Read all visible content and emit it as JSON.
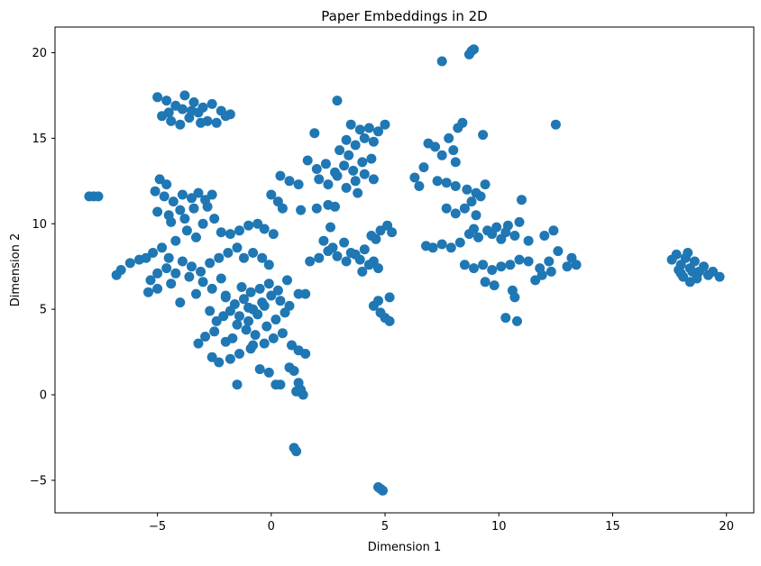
{
  "chart_data": {
    "type": "scatter",
    "title": "Paper Embeddings in 2D",
    "xlabel": "Dimension 1",
    "ylabel": "Dimension 2",
    "xlim": [
      -9.5,
      21.2
    ],
    "ylim": [
      -6.9,
      21.5
    ],
    "xticks": [
      -5,
      0,
      5,
      10,
      15,
      20
    ],
    "yticks": [
      -5,
      0,
      5,
      10,
      15,
      20
    ],
    "xtick_labels": [
      "−5",
      "0",
      "5",
      "10",
      "15",
      "20"
    ],
    "ytick_labels": [
      "−5",
      "0",
      "5",
      "10",
      "15",
      "20"
    ],
    "grid": false,
    "legend": "none",
    "marker_color": "#1f77b4",
    "points": [
      [
        8.9,
        20.2
      ],
      [
        8.7,
        19.9
      ],
      [
        8.8,
        20.1
      ],
      [
        7.5,
        19.5
      ],
      [
        -5.0,
        17.4
      ],
      [
        -4.6,
        17.2
      ],
      [
        -4.2,
        16.9
      ],
      [
        -3.8,
        17.5
      ],
      [
        -3.4,
        17.1
      ],
      [
        -3.0,
        16.8
      ],
      [
        -2.6,
        17.0
      ],
      [
        -2.2,
        16.6
      ],
      [
        -1.8,
        16.4
      ],
      [
        -4.8,
        16.3
      ],
      [
        -4.4,
        16.0
      ],
      [
        -4.0,
        15.8
      ],
      [
        -3.6,
        16.2
      ],
      [
        -3.2,
        16.5
      ],
      [
        -2.8,
        16.0
      ],
      [
        -2.4,
        15.9
      ],
      [
        -3.9,
        16.7
      ],
      [
        -3.5,
        16.6
      ],
      [
        -4.5,
        16.5
      ],
      [
        -2.0,
        16.3
      ],
      [
        -3.1,
        15.9
      ],
      [
        -8.0,
        11.6
      ],
      [
        -7.8,
        11.6
      ],
      [
        -7.6,
        11.6
      ],
      [
        2.9,
        17.2
      ],
      [
        1.9,
        15.3
      ],
      [
        12.5,
        15.8
      ],
      [
        9.3,
        15.2
      ],
      [
        3.5,
        15.8
      ],
      [
        3.9,
        15.5
      ],
      [
        4.3,
        15.6
      ],
      [
        4.7,
        15.4
      ],
      [
        5.0,
        15.8
      ],
      [
        3.3,
        14.9
      ],
      [
        3.7,
        14.6
      ],
      [
        4.1,
        15.0
      ],
      [
        4.5,
        14.8
      ],
      [
        3.0,
        14.3
      ],
      [
        3.4,
        14.0
      ],
      [
        1.6,
        13.7
      ],
      [
        2.0,
        13.2
      ],
      [
        2.4,
        13.5
      ],
      [
        2.8,
        13.0
      ],
      [
        3.2,
        13.4
      ],
      [
        3.6,
        13.1
      ],
      [
        4.0,
        13.6
      ],
      [
        4.4,
        13.8
      ],
      [
        2.1,
        12.6
      ],
      [
        2.5,
        12.3
      ],
      [
        2.9,
        12.8
      ],
      [
        3.3,
        12.1
      ],
      [
        3.7,
        12.5
      ],
      [
        4.1,
        12.9
      ],
      [
        4.5,
        12.6
      ],
      [
        3.8,
        11.8
      ],
      [
        0.4,
        12.8
      ],
      [
        0.8,
        12.5
      ],
      [
        1.2,
        12.3
      ],
      [
        0.0,
        11.7
      ],
      [
        0.3,
        11.3
      ],
      [
        0.5,
        10.9
      ],
      [
        1.3,
        10.8
      ],
      [
        2.0,
        10.9
      ],
      [
        2.5,
        11.1
      ],
      [
        2.8,
        11.0
      ],
      [
        6.3,
        12.7
      ],
      [
        6.5,
        12.2
      ],
      [
        6.7,
        13.3
      ],
      [
        6.9,
        14.7
      ],
      [
        7.2,
        14.5
      ],
      [
        7.5,
        14.0
      ],
      [
        8.0,
        14.3
      ],
      [
        8.4,
        15.9
      ],
      [
        8.2,
        15.6
      ],
      [
        7.8,
        15.0
      ],
      [
        8.1,
        13.6
      ],
      [
        7.3,
        12.5
      ],
      [
        7.7,
        12.4
      ],
      [
        8.1,
        12.2
      ],
      [
        8.6,
        12.0
      ],
      [
        9.0,
        11.8
      ],
      [
        9.4,
        12.3
      ],
      [
        9.2,
        11.6
      ],
      [
        8.8,
        11.3
      ],
      [
        8.5,
        10.9
      ],
      [
        8.1,
        10.6
      ],
      [
        7.7,
        10.9
      ],
      [
        9.0,
        10.5
      ],
      [
        7.5,
        8.8
      ],
      [
        7.9,
        8.6
      ],
      [
        8.3,
        8.9
      ],
      [
        8.7,
        9.4
      ],
      [
        9.1,
        9.2
      ],
      [
        9.5,
        9.6
      ],
      [
        9.9,
        9.8
      ],
      [
        10.3,
        9.5
      ],
      [
        10.7,
        9.3
      ],
      [
        10.4,
        9.9
      ],
      [
        10.9,
        10.1
      ],
      [
        11.3,
        9.0
      ],
      [
        10.1,
        9.1
      ],
      [
        9.7,
        9.4
      ],
      [
        8.9,
        9.7
      ],
      [
        6.8,
        8.7
      ],
      [
        7.1,
        8.6
      ],
      [
        12.0,
        9.3
      ],
      [
        12.4,
        9.6
      ],
      [
        12.6,
        8.4
      ],
      [
        13.2,
        8.0
      ],
      [
        13.4,
        7.6
      ],
      [
        13.0,
        7.5
      ],
      [
        12.3,
        7.2
      ],
      [
        11.9,
        7.0
      ],
      [
        11.6,
        6.7
      ],
      [
        11.3,
        7.8
      ],
      [
        10.9,
        7.9
      ],
      [
        10.5,
        7.6
      ],
      [
        10.1,
        7.5
      ],
      [
        9.7,
        7.3
      ],
      [
        9.3,
        7.6
      ],
      [
        8.9,
        7.4
      ],
      [
        8.5,
        7.6
      ],
      [
        9.4,
        6.6
      ],
      [
        9.8,
        6.4
      ],
      [
        10.6,
        6.1
      ],
      [
        10.7,
        5.7
      ],
      [
        10.3,
        4.5
      ],
      [
        10.8,
        4.3
      ],
      [
        11.0,
        11.4
      ],
      [
        11.8,
        7.4
      ],
      [
        12.2,
        7.8
      ],
      [
        17.6,
        7.9
      ],
      [
        17.8,
        8.2
      ],
      [
        18.0,
        7.6
      ],
      [
        18.2,
        8.0
      ],
      [
        18.4,
        7.4
      ],
      [
        18.6,
        7.8
      ],
      [
        18.8,
        7.2
      ],
      [
        18.1,
        6.9
      ],
      [
        18.4,
        6.6
      ],
      [
        18.7,
        6.8
      ],
      [
        17.9,
        7.3
      ],
      [
        18.3,
        8.3
      ],
      [
        19.0,
        7.5
      ],
      [
        19.4,
        7.2
      ],
      [
        19.7,
        6.9
      ],
      [
        19.2,
        7.0
      ],
      [
        18.0,
        7.1
      ],
      [
        18.5,
        7.2
      ],
      [
        1.7,
        7.8
      ],
      [
        2.1,
        8.0
      ],
      [
        2.5,
        8.4
      ],
      [
        2.9,
        8.1
      ],
      [
        3.3,
        7.8
      ],
      [
        3.7,
        8.2
      ],
      [
        4.1,
        8.5
      ],
      [
        4.5,
        7.8
      ],
      [
        4.7,
        7.4
      ],
      [
        4.3,
        7.6
      ],
      [
        3.9,
        7.9
      ],
      [
        2.3,
        9.0
      ],
      [
        2.7,
        8.6
      ],
      [
        2.6,
        9.8
      ],
      [
        3.2,
        8.9
      ],
      [
        3.5,
        8.3
      ],
      [
        4.0,
        7.2
      ],
      [
        4.4,
        9.3
      ],
      [
        4.8,
        9.6
      ],
      [
        5.1,
        9.9
      ],
      [
        5.3,
        9.5
      ],
      [
        4.6,
        9.1
      ],
      [
        4.5,
        5.2
      ],
      [
        4.8,
        4.8
      ],
      [
        5.0,
        4.5
      ],
      [
        5.2,
        4.3
      ],
      [
        4.7,
        5.5
      ],
      [
        5.2,
        5.7
      ],
      [
        -4.9,
        12.6
      ],
      [
        -4.6,
        12.3
      ],
      [
        -5.1,
        11.9
      ],
      [
        -4.7,
        11.6
      ],
      [
        -4.3,
        11.3
      ],
      [
        -3.9,
        11.7
      ],
      [
        -3.5,
        11.5
      ],
      [
        -3.2,
        11.8
      ],
      [
        -2.9,
        11.4
      ],
      [
        -2.6,
        11.7
      ],
      [
        -2.8,
        11.0
      ],
      [
        -3.4,
        10.9
      ],
      [
        -4.0,
        10.8
      ],
      [
        -4.5,
        10.5
      ],
      [
        -5.0,
        10.7
      ],
      [
        -4.4,
        10.1
      ],
      [
        -3.8,
        10.3
      ],
      [
        -3.0,
        10.0
      ],
      [
        -2.5,
        10.3
      ],
      [
        -2.2,
        9.5
      ],
      [
        -1.8,
        9.4
      ],
      [
        -1.4,
        9.6
      ],
      [
        -1.0,
        9.9
      ],
      [
        -0.6,
        10.0
      ],
      [
        -0.3,
        9.7
      ],
      [
        0.1,
        9.4
      ],
      [
        -3.7,
        9.6
      ],
      [
        -3.3,
        9.2
      ],
      [
        -4.2,
        9.0
      ],
      [
        -4.8,
        8.6
      ],
      [
        -5.2,
        8.3
      ],
      [
        -4.5,
        8.0
      ],
      [
        -3.9,
        7.8
      ],
      [
        -3.5,
        7.5
      ],
      [
        -3.1,
        7.2
      ],
      [
        -2.7,
        7.7
      ],
      [
        -2.3,
        8.0
      ],
      [
        -1.9,
        8.3
      ],
      [
        -1.5,
        8.6
      ],
      [
        -1.2,
        8.0
      ],
      [
        -0.8,
        8.3
      ],
      [
        -0.4,
        8.0
      ],
      [
        -0.1,
        7.6
      ],
      [
        -5.5,
        8.0
      ],
      [
        -5.8,
        7.9
      ],
      [
        -6.2,
        7.7
      ],
      [
        -6.6,
        7.3
      ],
      [
        -6.8,
        7.0
      ],
      [
        -4.2,
        7.1
      ],
      [
        -4.6,
        7.4
      ],
      [
        -5.0,
        7.1
      ],
      [
        -5.3,
        6.7
      ],
      [
        -5.4,
        6.0
      ],
      [
        -5.0,
        6.2
      ],
      [
        -4.4,
        6.5
      ],
      [
        -3.6,
        6.9
      ],
      [
        -3.0,
        6.6
      ],
      [
        -2.6,
        6.2
      ],
      [
        -2.2,
        6.8
      ],
      [
        -4.0,
        5.4
      ],
      [
        -2.0,
        5.8
      ],
      [
        -3.3,
        5.9
      ],
      [
        -2.0,
        5.7
      ],
      [
        -1.6,
        5.3
      ],
      [
        -1.2,
        5.6
      ],
      [
        -0.8,
        5.0
      ],
      [
        -0.4,
        5.4
      ],
      [
        0.0,
        5.8
      ],
      [
        0.4,
        5.5
      ],
      [
        0.8,
        5.2
      ],
      [
        1.2,
        5.9
      ],
      [
        1.5,
        5.9
      ],
      [
        -1.8,
        4.9
      ],
      [
        -1.4,
        4.6
      ],
      [
        -1.0,
        4.3
      ],
      [
        -0.6,
        4.7
      ],
      [
        -0.2,
        4.0
      ],
      [
        0.2,
        4.4
      ],
      [
        0.6,
        4.8
      ],
      [
        0.3,
        6.1
      ],
      [
        -0.1,
        6.5
      ],
      [
        -0.5,
        6.2
      ],
      [
        -0.9,
        6.0
      ],
      [
        -1.3,
        6.3
      ],
      [
        0.7,
        6.7
      ],
      [
        0.5,
        3.6
      ],
      [
        0.1,
        3.3
      ],
      [
        -0.3,
        3.0
      ],
      [
        -0.7,
        3.5
      ],
      [
        -1.1,
        3.8
      ],
      [
        -1.5,
        4.1
      ],
      [
        -2.1,
        4.6
      ],
      [
        -2.4,
        4.3
      ],
      [
        -2.7,
        4.9
      ],
      [
        -2.5,
        3.7
      ],
      [
        -2.9,
        3.4
      ],
      [
        -3.2,
        3.0
      ],
      [
        -1.4,
        2.4
      ],
      [
        -1.8,
        2.1
      ],
      [
        -2.3,
        1.9
      ],
      [
        -2.6,
        2.2
      ],
      [
        -0.9,
        2.7
      ],
      [
        -0.5,
        1.5
      ],
      [
        -0.1,
        1.3
      ],
      [
        -1.5,
        0.6
      ],
      [
        0.2,
        0.6
      ],
      [
        0.4,
        0.6
      ],
      [
        -2.0,
        3.1
      ],
      [
        -1.7,
        3.3
      ],
      [
        -0.8,
        2.9
      ],
      [
        -1.0,
        5.1
      ],
      [
        -0.3,
        5.2
      ],
      [
        0.9,
        2.9
      ],
      [
        1.2,
        2.6
      ],
      [
        1.5,
        2.4
      ],
      [
        0.8,
        1.6
      ],
      [
        1.0,
        1.4
      ],
      [
        1.2,
        0.7
      ],
      [
        1.3,
        0.3
      ],
      [
        1.4,
        0.0
      ],
      [
        1.1,
        0.2
      ],
      [
        1.0,
        -3.1
      ],
      [
        1.1,
        -3.3
      ],
      [
        4.7,
        -5.4
      ],
      [
        4.8,
        -5.5
      ],
      [
        4.9,
        -5.6
      ]
    ]
  }
}
